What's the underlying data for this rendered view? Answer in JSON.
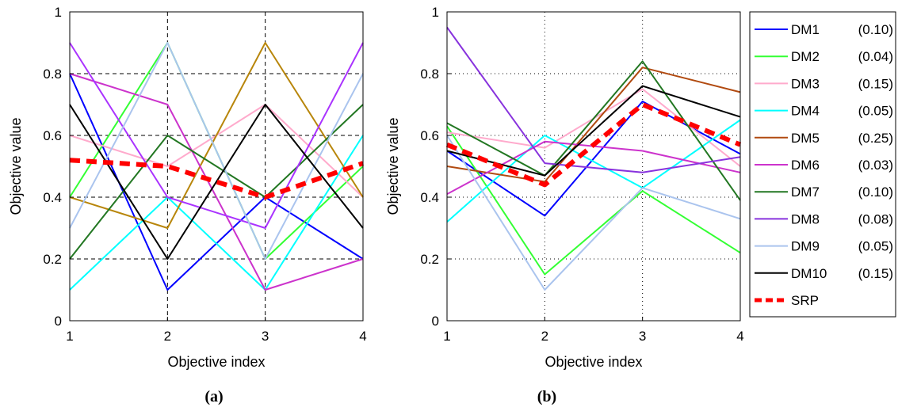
{
  "chart_data": [
    {
      "type": "line",
      "caption": "(a)",
      "xlabel": "Objective index",
      "ylabel": "Objective value",
      "x": [
        1,
        2,
        3,
        4
      ],
      "xlim": [
        1,
        4
      ],
      "ylim": [
        0,
        1
      ],
      "xticks": [
        "1",
        "2",
        "3",
        "4"
      ],
      "yticks": [
        "0",
        "0.2",
        "0.4",
        "0.6",
        "0.8",
        "1"
      ],
      "grid": "dashed",
      "series": [
        {
          "name": "DM1",
          "color": "#0000ff",
          "values": [
            0.8,
            0.1,
            0.4,
            0.2
          ]
        },
        {
          "name": "DM2",
          "color": "#33ff33",
          "values": [
            0.4,
            0.9,
            0.2,
            0.5
          ]
        },
        {
          "name": "DM3",
          "color": "#ffaacc",
          "values": [
            0.6,
            0.5,
            0.7,
            0.4
          ]
        },
        {
          "name": "DM4",
          "color": "#00ffff",
          "values": [
            0.1,
            0.4,
            0.1,
            0.6
          ]
        },
        {
          "name": "DM5",
          "color": "#b8860b",
          "values": [
            0.4,
            0.3,
            0.9,
            0.4
          ]
        },
        {
          "name": "DM6",
          "color": "#cc33cc",
          "values": [
            0.8,
            0.7,
            0.1,
            0.2
          ]
        },
        {
          "name": "DM7",
          "color": "#227722",
          "values": [
            0.2,
            0.6,
            0.4,
            0.7
          ]
        },
        {
          "name": "DM8",
          "color": "#aa33ff",
          "values": [
            0.9,
            0.4,
            0.3,
            0.9
          ]
        },
        {
          "name": "DM9",
          "color": "#aac4ee",
          "values": [
            0.3,
            0.9,
            0.2,
            0.8
          ]
        },
        {
          "name": "DM10",
          "color": "#000000",
          "values": [
            0.7,
            0.2,
            0.7,
            0.3
          ]
        },
        {
          "name": "SRP",
          "color": "#ff0000",
          "dashed": true,
          "values": [
            0.52,
            0.5,
            0.4,
            0.51
          ]
        }
      ]
    },
    {
      "type": "line",
      "caption": "(b)",
      "xlabel": "Objective index",
      "ylabel": "Objective value",
      "x": [
        1,
        2,
        3,
        4
      ],
      "xlim": [
        1,
        4
      ],
      "ylim": [
        0,
        1
      ],
      "xticks": [
        "1",
        "2",
        "3",
        "4"
      ],
      "yticks": [
        "0",
        "0.2",
        "0.4",
        "0.6",
        "0.8",
        "1"
      ],
      "grid": "dotted",
      "legend": "outside-right",
      "series": [
        {
          "name": "DM1",
          "weight": "(0.10)",
          "color": "#0000ff",
          "values": [
            0.55,
            0.34,
            0.71,
            0.54
          ]
        },
        {
          "name": "DM2",
          "weight": "(0.04)",
          "color": "#33ff33",
          "values": [
            0.63,
            0.15,
            0.42,
            0.22
          ]
        },
        {
          "name": "DM3",
          "weight": "(0.15)",
          "color": "#ffaacc",
          "values": [
            0.61,
            0.56,
            0.75,
            0.5
          ]
        },
        {
          "name": "DM4",
          "weight": "(0.05)",
          "color": "#00ffff",
          "values": [
            0.32,
            0.6,
            0.43,
            0.65
          ]
        },
        {
          "name": "DM5",
          "weight": "(0.25)",
          "color": "#b14a10",
          "values": [
            0.5,
            0.45,
            0.82,
            0.74
          ]
        },
        {
          "name": "DM6",
          "weight": "(0.03)",
          "color": "#cc33cc",
          "values": [
            0.41,
            0.58,
            0.55,
            0.48
          ]
        },
        {
          "name": "DM7",
          "weight": "(0.10)",
          "color": "#227722",
          "values": [
            0.64,
            0.47,
            0.84,
            0.39
          ]
        },
        {
          "name": "DM8",
          "weight": "(0.08)",
          "color": "#8833dd",
          "values": [
            0.95,
            0.51,
            0.48,
            0.53
          ]
        },
        {
          "name": "DM9",
          "weight": "(0.05)",
          "color": "#aac4ee",
          "values": [
            0.6,
            0.1,
            0.43,
            0.33
          ]
        },
        {
          "name": "DM10",
          "weight": "(0.15)",
          "color": "#000000",
          "values": [
            0.55,
            0.47,
            0.76,
            0.66
          ]
        },
        {
          "name": "SRP",
          "weight": "",
          "color": "#ff0000",
          "dashed": true,
          "values": [
            0.57,
            0.44,
            0.7,
            0.57
          ]
        }
      ]
    }
  ]
}
